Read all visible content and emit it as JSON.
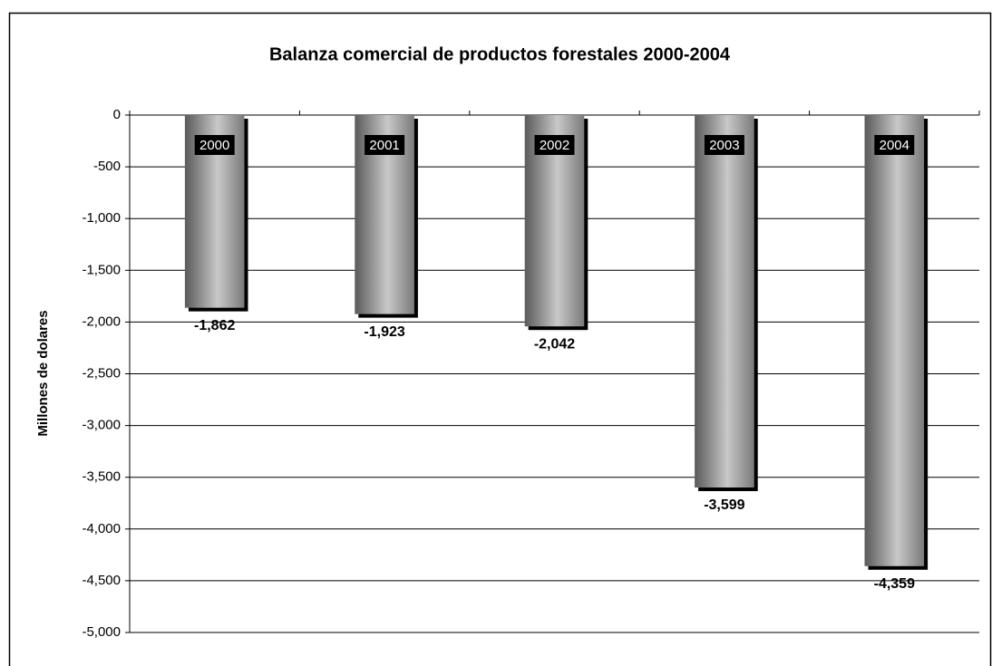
{
  "chart_data": {
    "type": "bar",
    "title": "Balanza comercial de productos forestales 2000-2004",
    "y_label": "Millones de dolares",
    "categories": [
      "2000",
      "2001",
      "2002",
      "2003",
      "2004"
    ],
    "values": [
      -1862,
      -1923,
      -2042,
      -3599,
      -4359
    ],
    "value_labels": [
      "-1,862",
      "-1,923",
      "-2,042",
      "-3,599",
      "-4,359"
    ],
    "color": "#9a9a9a",
    "ylim": [
      -5000,
      0
    ],
    "yticks": [
      0,
      -500,
      {
        "value": -1000,
        "label": "-1,000"
      },
      {
        "value": -1500,
        "label": "-1,500"
      },
      {
        "value": -2000,
        "label": "-2,000"
      },
      {
        "value": -2500,
        "label": "-2,500"
      },
      {
        "value": -3000,
        "label": "-3,000"
      },
      {
        "value": -3500,
        "label": "-3,500"
      },
      {
        "value": -4000,
        "label": "-4,000"
      },
      {
        "value": -4500,
        "label": "-4,500"
      },
      {
        "value": -5000,
        "label": "-5,000"
      }
    ],
    "grid": true
  }
}
